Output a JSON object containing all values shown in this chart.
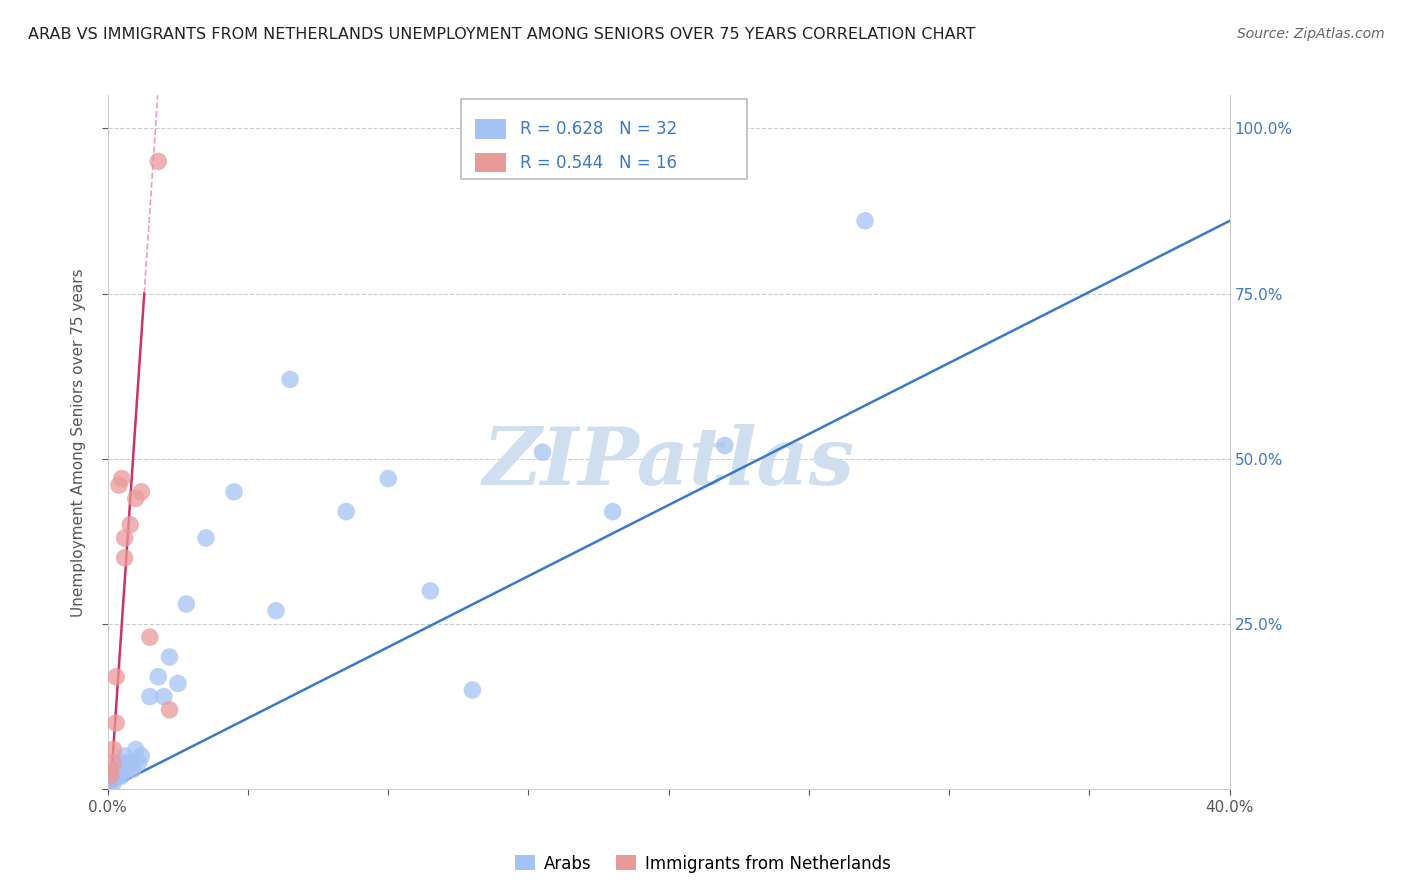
{
  "title": "ARAB VS IMMIGRANTS FROM NETHERLANDS UNEMPLOYMENT AMONG SENIORS OVER 75 YEARS CORRELATION CHART",
  "source": "Source: ZipAtlas.com",
  "ylabel": "Unemployment Among Seniors over 75 years",
  "xlim": [
    0.0,
    0.4
  ],
  "ylim": [
    0.0,
    1.05
  ],
  "x_ticks": [
    0.0,
    0.05,
    0.1,
    0.15,
    0.2,
    0.25,
    0.3,
    0.35,
    0.4
  ],
  "x_tick_labels": [
    "0.0%",
    "",
    "",
    "",
    "",
    "",
    "",
    "",
    "40.0%"
  ],
  "y_ticks": [
    0.0,
    0.25,
    0.5,
    0.75,
    1.0
  ],
  "y_tick_labels_right": [
    "",
    "25.0%",
    "50.0%",
    "75.0%",
    "100.0%"
  ],
  "blue_R": 0.628,
  "blue_N": 32,
  "pink_R": 0.544,
  "pink_N": 16,
  "blue_color": "#a4c2f4",
  "pink_color": "#ea9999",
  "blue_line_color": "#3a78c9",
  "pink_line_color": "#cc3366",
  "pink_line_dashed_color": "#e06080",
  "grid_color": "#cccccc",
  "watermark": "ZIPatlas",
  "watermark_color": "#d0dff0",
  "title_color": "#222222",
  "right_tick_color": "#3a78c9",
  "legend_blue_label": "Arabs",
  "legend_pink_label": "Immigrants from Netherlands",
  "blue_x": [
    0.001,
    0.002,
    0.003,
    0.003,
    0.004,
    0.005,
    0.005,
    0.006,
    0.007,
    0.008,
    0.009,
    0.01,
    0.011,
    0.012,
    0.015,
    0.018,
    0.02,
    0.022,
    0.025,
    0.028,
    0.035,
    0.045,
    0.06,
    0.065,
    0.085,
    0.1,
    0.115,
    0.13,
    0.155,
    0.18,
    0.22,
    0.27
  ],
  "blue_y": [
    0.01,
    0.01,
    0.02,
    0.03,
    0.02,
    0.04,
    0.02,
    0.05,
    0.03,
    0.04,
    0.03,
    0.06,
    0.04,
    0.05,
    0.14,
    0.17,
    0.14,
    0.2,
    0.16,
    0.28,
    0.38,
    0.45,
    0.27,
    0.62,
    0.42,
    0.47,
    0.3,
    0.15,
    0.51,
    0.42,
    0.52,
    0.86
  ],
  "pink_x": [
    0.001,
    0.001,
    0.002,
    0.002,
    0.003,
    0.003,
    0.004,
    0.005,
    0.006,
    0.006,
    0.008,
    0.01,
    0.012,
    0.015,
    0.018,
    0.022
  ],
  "pink_y": [
    0.02,
    0.03,
    0.04,
    0.06,
    0.1,
    0.17,
    0.46,
    0.47,
    0.35,
    0.38,
    0.4,
    0.44,
    0.45,
    0.23,
    0.95,
    0.12
  ],
  "blue_line_x0": 0.0,
  "blue_line_y0": 0.0,
  "blue_line_x1": 0.4,
  "blue_line_y1": 0.86,
  "pink_line_solid_x0": 0.001,
  "pink_line_solid_y0": 0.0,
  "pink_line_solid_x1": 0.013,
  "pink_line_solid_y1": 0.75,
  "pink_line_dashed_x0": 0.001,
  "pink_line_dashed_y0": 0.0,
  "pink_line_dashed_x1": 0.02,
  "pink_line_dashed_y1": 1.05
}
